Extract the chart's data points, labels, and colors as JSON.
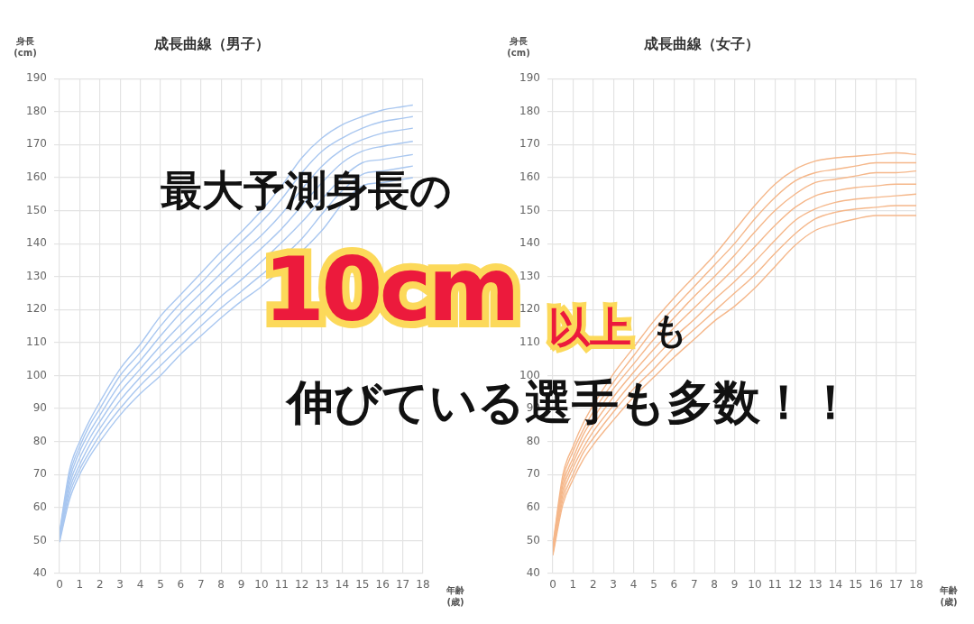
{
  "chart_data": [
    {
      "type": "line",
      "title": "成長曲線（男子）",
      "ylabel": "身長\n(cm)",
      "xlabel": "年齢\n(歳)",
      "xlim": [
        0,
        18
      ],
      "xticks": [
        0,
        1,
        2,
        3,
        4,
        5,
        6,
        7,
        8,
        9,
        10,
        11,
        12,
        13,
        14,
        15,
        16,
        17,
        18
      ],
      "ylim": [
        40,
        190
      ],
      "yticks": [
        40,
        50,
        60,
        70,
        80,
        90,
        100,
        110,
        120,
        130,
        140,
        150,
        160,
        170,
        180,
        190
      ],
      "grid": true,
      "legend": false,
      "marker": "none",
      "line_style": "solid",
      "x": [
        0,
        0.5,
        1,
        1.5,
        2,
        3,
        4,
        5,
        6,
        7,
        8,
        9,
        10,
        11,
        12,
        13,
        14,
        15,
        16,
        17,
        17.5
      ],
      "series": [
        {
          "color": "#a9c7f0",
          "values": [
            52.5,
            71.5,
            80,
            86.5,
            92,
            102,
            109.5,
            118,
            124.5,
            131,
            137.5,
            143.5,
            150,
            157.5,
            166,
            172,
            176,
            178.5,
            180.5,
            181.5,
            182
          ]
        },
        {
          "color": "#a9c7f0",
          "values": [
            52,
            70,
            78.5,
            85,
            90,
            100,
            107,
            115,
            122,
            128,
            134.5,
            140.5,
            146.5,
            153.5,
            161.5,
            168,
            172,
            175,
            177,
            178,
            178.5
          ]
        },
        {
          "color": "#a9c7f0",
          "values": [
            51.5,
            68.5,
            77,
            83,
            88,
            97.5,
            104.5,
            112,
            119,
            125,
            131,
            137,
            142.5,
            149,
            156.5,
            163.5,
            168.5,
            171.5,
            173.5,
            174.5,
            175
          ]
        },
        {
          "color": "#a9c7f0",
          "values": [
            51,
            67,
            75,
            81,
            86,
            95,
            102,
            109,
            115.5,
            121.5,
            127.5,
            133,
            null,
            144.5,
            151.5,
            158.5,
            164.5,
            168,
            169.5,
            170.5,
            171
          ]
        },
        {
          "color": "#a9c7f0",
          "values": [
            50.5,
            65.5,
            73,
            79,
            84,
            92.5,
            99.5,
            106,
            112,
            118,
            124,
            129,
            null,
            null,
            146.5,
            153.5,
            160,
            164.5,
            165.5,
            166.5,
            167
          ]
        },
        {
          "color": "#a9c7f0",
          "values": [
            50,
            64,
            71.5,
            77,
            82,
            90,
            97,
            103,
            109,
            115,
            120.5,
            125.5,
            null,
            null,
            141.5,
            149,
            156,
            161,
            162,
            163,
            163.5
          ]
        },
        {
          "color": "#a9c7f0",
          "values": [
            49.5,
            62.5,
            70,
            75.5,
            80,
            88,
            94.5,
            100,
            106.5,
            112,
            117.5,
            122.5,
            127,
            null,
            null,
            144,
            152,
            157.5,
            158.5,
            159.5,
            160
          ]
        }
      ]
    },
    {
      "type": "line",
      "title": "成長曲線（女子）",
      "ylabel": "身長\n(cm)",
      "xlabel": "年齢\n(歳)",
      "xlim": [
        0,
        18
      ],
      "xticks": [
        0,
        1,
        2,
        3,
        4,
        5,
        6,
        7,
        8,
        9,
        10,
        11,
        12,
        13,
        14,
        15,
        16,
        17,
        18
      ],
      "ylim": [
        40,
        190
      ],
      "yticks": [
        40,
        50,
        60,
        70,
        80,
        90,
        100,
        110,
        120,
        130,
        140,
        150,
        160,
        170,
        180,
        190
      ],
      "grid": true,
      "legend": false,
      "marker": "none",
      "line_style": "solid",
      "x": [
        0,
        0.5,
        1,
        1.5,
        2,
        3,
        4,
        5,
        6,
        7,
        8,
        9,
        10,
        11,
        12,
        13,
        14,
        15,
        16,
        17,
        18
      ],
      "series": [
        {
          "color": "#f5b78a",
          "values": [
            48.5,
            70,
            78.5,
            85.5,
            91,
            100.5,
            108.5,
            116.5,
            123.5,
            130,
            136.5,
            144,
            151.5,
            158,
            162.5,
            165,
            166,
            166.5,
            167,
            167.5,
            167
          ]
        },
        {
          "color": "#f5b78a",
          "values": [
            48,
            68.5,
            77,
            83.5,
            89,
            98,
            106,
            114,
            120.5,
            127,
            133.5,
            140,
            147.5,
            154,
            159,
            161.5,
            162.5,
            163.5,
            164.5,
            164.5,
            164.5
          ]
        },
        {
          "color": "#f5b78a",
          "values": [
            47.5,
            67,
            75,
            82,
            87,
            96,
            103.5,
            111,
            117.5,
            124,
            130,
            136.5,
            143.5,
            150,
            155,
            158.5,
            159.5,
            160.5,
            161.5,
            161.5,
            162
          ]
        },
        {
          "color": "#f5b78a",
          "values": [
            47,
            65.5,
            73.5,
            80,
            85,
            93.5,
            101,
            108,
            114.5,
            120.5,
            126.5,
            132.5,
            139,
            145.5,
            151,
            154.5,
            156,
            157,
            157.5,
            158,
            158
          ]
        },
        {
          "color": "#f5b78a",
          "values": [
            46.5,
            64,
            72,
            78,
            83,
            91,
            98.5,
            105,
            111.5,
            117,
            123,
            128.5,
            134.5,
            141,
            147,
            150.5,
            152.5,
            153.5,
            154,
            154.5,
            155
          ]
        },
        {
          "color": "#f5b78a",
          "values": [
            46,
            62.5,
            70,
            76.5,
            81,
            89,
            96,
            102,
            108.5,
            114,
            119.5,
            125,
            130.5,
            137,
            143,
            147.5,
            149.5,
            150.5,
            151,
            151.5,
            151.5
          ]
        },
        {
          "color": "#f5b78a",
          "values": [
            45.5,
            61,
            68.5,
            74.5,
            79,
            86.5,
            93.5,
            99.5,
            105.5,
            111,
            116.5,
            121,
            126.5,
            133,
            139.5,
            144,
            146,
            147.5,
            148.5,
            148.5,
            148.5
          ]
        }
      ]
    },
    {
      "type": "other",
      "annotations": [
        "最大予測身長の",
        "10cm",
        "以上",
        "も",
        "伸びている選手も多数！！"
      ]
    }
  ]
}
